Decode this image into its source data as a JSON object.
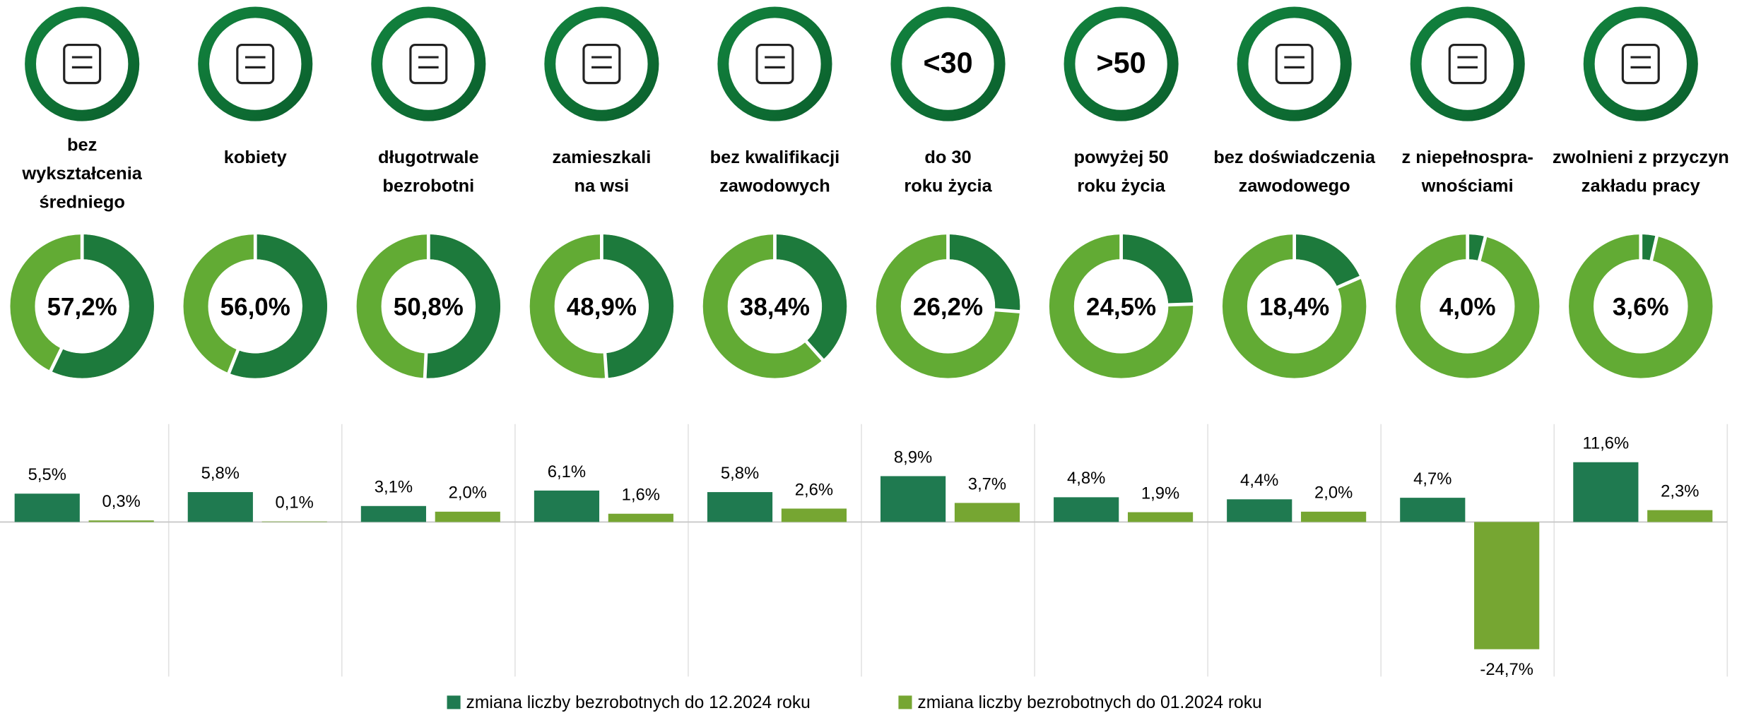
{
  "chart_data": [
    {
      "type": "donut",
      "categories": [
        [
          "bez",
          "wykształcenia",
          "średniego"
        ],
        [
          "kobiety"
        ],
        [
          "długotrwale",
          "bezrobotni"
        ],
        [
          "zamieszkali",
          "na wsi"
        ],
        [
          "bez kwalifikacji",
          "zawodowych"
        ],
        [
          "do 30",
          "roku życia"
        ],
        [
          "powyżej 50",
          "roku życia"
        ],
        [
          "bez doświadczenia",
          "zawodowego"
        ],
        [
          "z niepełnospra-",
          "wnościami"
        ],
        [
          "zwolnieni z przyczyn",
          "zakładu pracy"
        ]
      ],
      "icon_labels": [
        null,
        null,
        null,
        null,
        null,
        "<30",
        ">50",
        null,
        null,
        null
      ],
      "values": [
        57.2,
        56.0,
        50.8,
        48.9,
        38.4,
        26.2,
        24.5,
        18.4,
        4.0,
        3.6
      ],
      "value_labels": [
        "57,2%",
        "56,0%",
        "50,8%",
        "48,9%",
        "38,4%",
        "26,2%",
        "24,5%",
        "18,4%",
        "4,0%",
        "3,6%"
      ],
      "color": "#1d7a3c",
      "track_color": "#62ab34"
    },
    {
      "type": "bar",
      "ylim": [
        -30,
        19
      ],
      "series": [
        {
          "name": "zmiana liczby bezrobotnych do 12.2024 roku",
          "color": "#1f7a50",
          "values": [
            5.5,
            5.8,
            3.1,
            6.1,
            5.8,
            8.9,
            4.8,
            4.4,
            4.7,
            11.6
          ],
          "value_labels": [
            "5,5%",
            "5,8%",
            "3,1%",
            "6,1%",
            "5,8%",
            "8,9%",
            "4,8%",
            "4,4%",
            "4,7%",
            "11,6%"
          ]
        },
        {
          "name": "zmiana liczby bezrobotnych do 01.2024 roku",
          "color": "#76a632",
          "values": [
            0.3,
            0.1,
            2.0,
            1.6,
            2.6,
            3.7,
            1.9,
            2.0,
            -24.7,
            2.3
          ],
          "value_labels": [
            "0,3%",
            "0,1%",
            "2,0%",
            "1,6%",
            "2,6%",
            "3,7%",
            "1,9%",
            "2,0%",
            "-24,7%",
            "2,3%"
          ]
        }
      ]
    }
  ]
}
